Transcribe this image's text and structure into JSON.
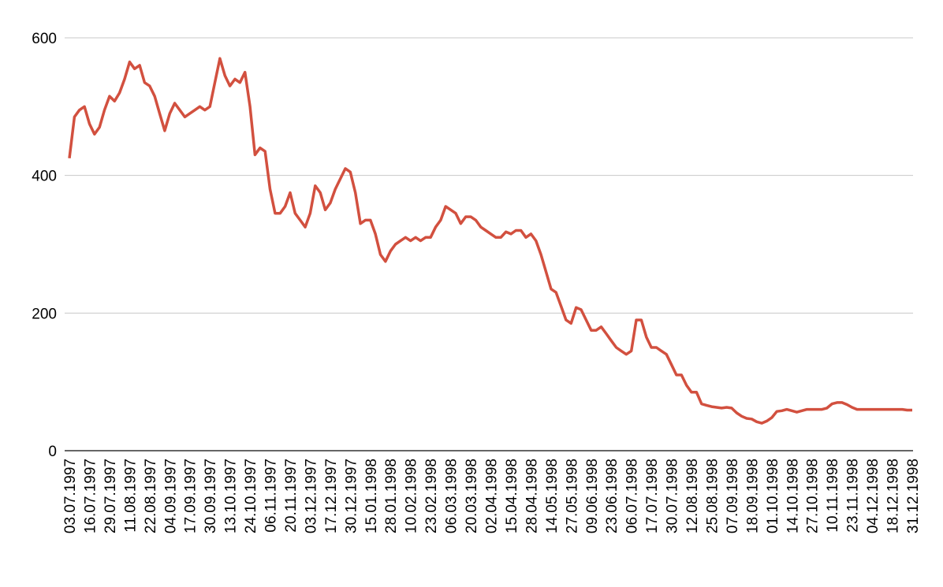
{
  "chart_data": {
    "type": "line",
    "categories": [
      "03.07.1997",
      null,
      null,
      null,
      "16.07.1997",
      null,
      null,
      null,
      "29.07.1997",
      null,
      null,
      null,
      "11.08.1997",
      null,
      null,
      null,
      "22.08.1997",
      null,
      null,
      null,
      "04.09.1997",
      null,
      null,
      null,
      "17.09.1997",
      null,
      null,
      null,
      "30.09.1997",
      null,
      null,
      null,
      "13.10.1997",
      null,
      null,
      null,
      "24.10.1997",
      null,
      null,
      null,
      "06.11.1997",
      null,
      null,
      null,
      "20.11.1997",
      null,
      null,
      null,
      "03.12.1997",
      null,
      null,
      null,
      "17.12.1997",
      null,
      null,
      null,
      "30.12.1997",
      null,
      null,
      null,
      "15.01.1998",
      null,
      null,
      null,
      "28.01.1998",
      null,
      null,
      null,
      "10.02.1998",
      null,
      null,
      null,
      "23.02.1998",
      null,
      null,
      null,
      "06.03.1998",
      null,
      null,
      null,
      "20.03.1998",
      null,
      null,
      null,
      "02.04.1998",
      null,
      null,
      null,
      "15.04.1998",
      null,
      null,
      null,
      "28.04.1998",
      null,
      null,
      null,
      "14.05.1998",
      null,
      null,
      null,
      "27.05.1998",
      null,
      null,
      null,
      "09.06.1998",
      null,
      null,
      null,
      "23.06.1998",
      null,
      null,
      null,
      "06.07.1998",
      null,
      null,
      null,
      "17.07.1998",
      null,
      null,
      null,
      "30.07.1998",
      null,
      null,
      null,
      "12.08.1998",
      null,
      null,
      null,
      "25.08.1998",
      null,
      null,
      null,
      "07.09.1998",
      null,
      null,
      null,
      "18.09.1998",
      null,
      null,
      null,
      "01.10.1998",
      null,
      null,
      null,
      "14.10.1998",
      null,
      null,
      null,
      "27.10.1998",
      null,
      null,
      null,
      "10.11.1998",
      null,
      null,
      null,
      "23.11.1998",
      null,
      null,
      null,
      "04.12.1998",
      null,
      null,
      null,
      "18.12.1998",
      null,
      null,
      null,
      "31.12.1998"
    ],
    "values": [
      425,
      485,
      495,
      500,
      475,
      460,
      470,
      495,
      515,
      508,
      520,
      540,
      565,
      555,
      560,
      535,
      530,
      515,
      490,
      465,
      490,
      505,
      495,
      485,
      490,
      495,
      500,
      495,
      500,
      535,
      570,
      545,
      530,
      540,
      535,
      550,
      500,
      430,
      440,
      435,
      380,
      345,
      345,
      355,
      375,
      345,
      335,
      325,
      345,
      385,
      375,
      350,
      360,
      380,
      395,
      410,
      405,
      375,
      330,
      335,
      335,
      315,
      285,
      275,
      290,
      300,
      305,
      310,
      305,
      310,
      305,
      310,
      310,
      325,
      335,
      355,
      350,
      345,
      330,
      340,
      340,
      335,
      325,
      320,
      315,
      310,
      310,
      318,
      315,
      320,
      320,
      310,
      315,
      305,
      285,
      260,
      235,
      230,
      210,
      190,
      185,
      208,
      205,
      190,
      175,
      175,
      180,
      170,
      160,
      150,
      145,
      140,
      145,
      190,
      190,
      165,
      150,
      150,
      145,
      140,
      125,
      110,
      110,
      95,
      85,
      85,
      68,
      66,
      64,
      63,
      62,
      63,
      62,
      55,
      50,
      47,
      46,
      42,
      40,
      43,
      48,
      57,
      58,
      60,
      58,
      56,
      58,
      60,
      60,
      60,
      60,
      62,
      68,
      70,
      70,
      67,
      63,
      60,
      60,
      60,
      60,
      60,
      60,
      60,
      60,
      60,
      60,
      59,
      59
    ],
    "color": "#d2503f",
    "ylim": [
      0,
      600
    ],
    "yticks": [
      0,
      200,
      400,
      600
    ],
    "grid": true
  }
}
